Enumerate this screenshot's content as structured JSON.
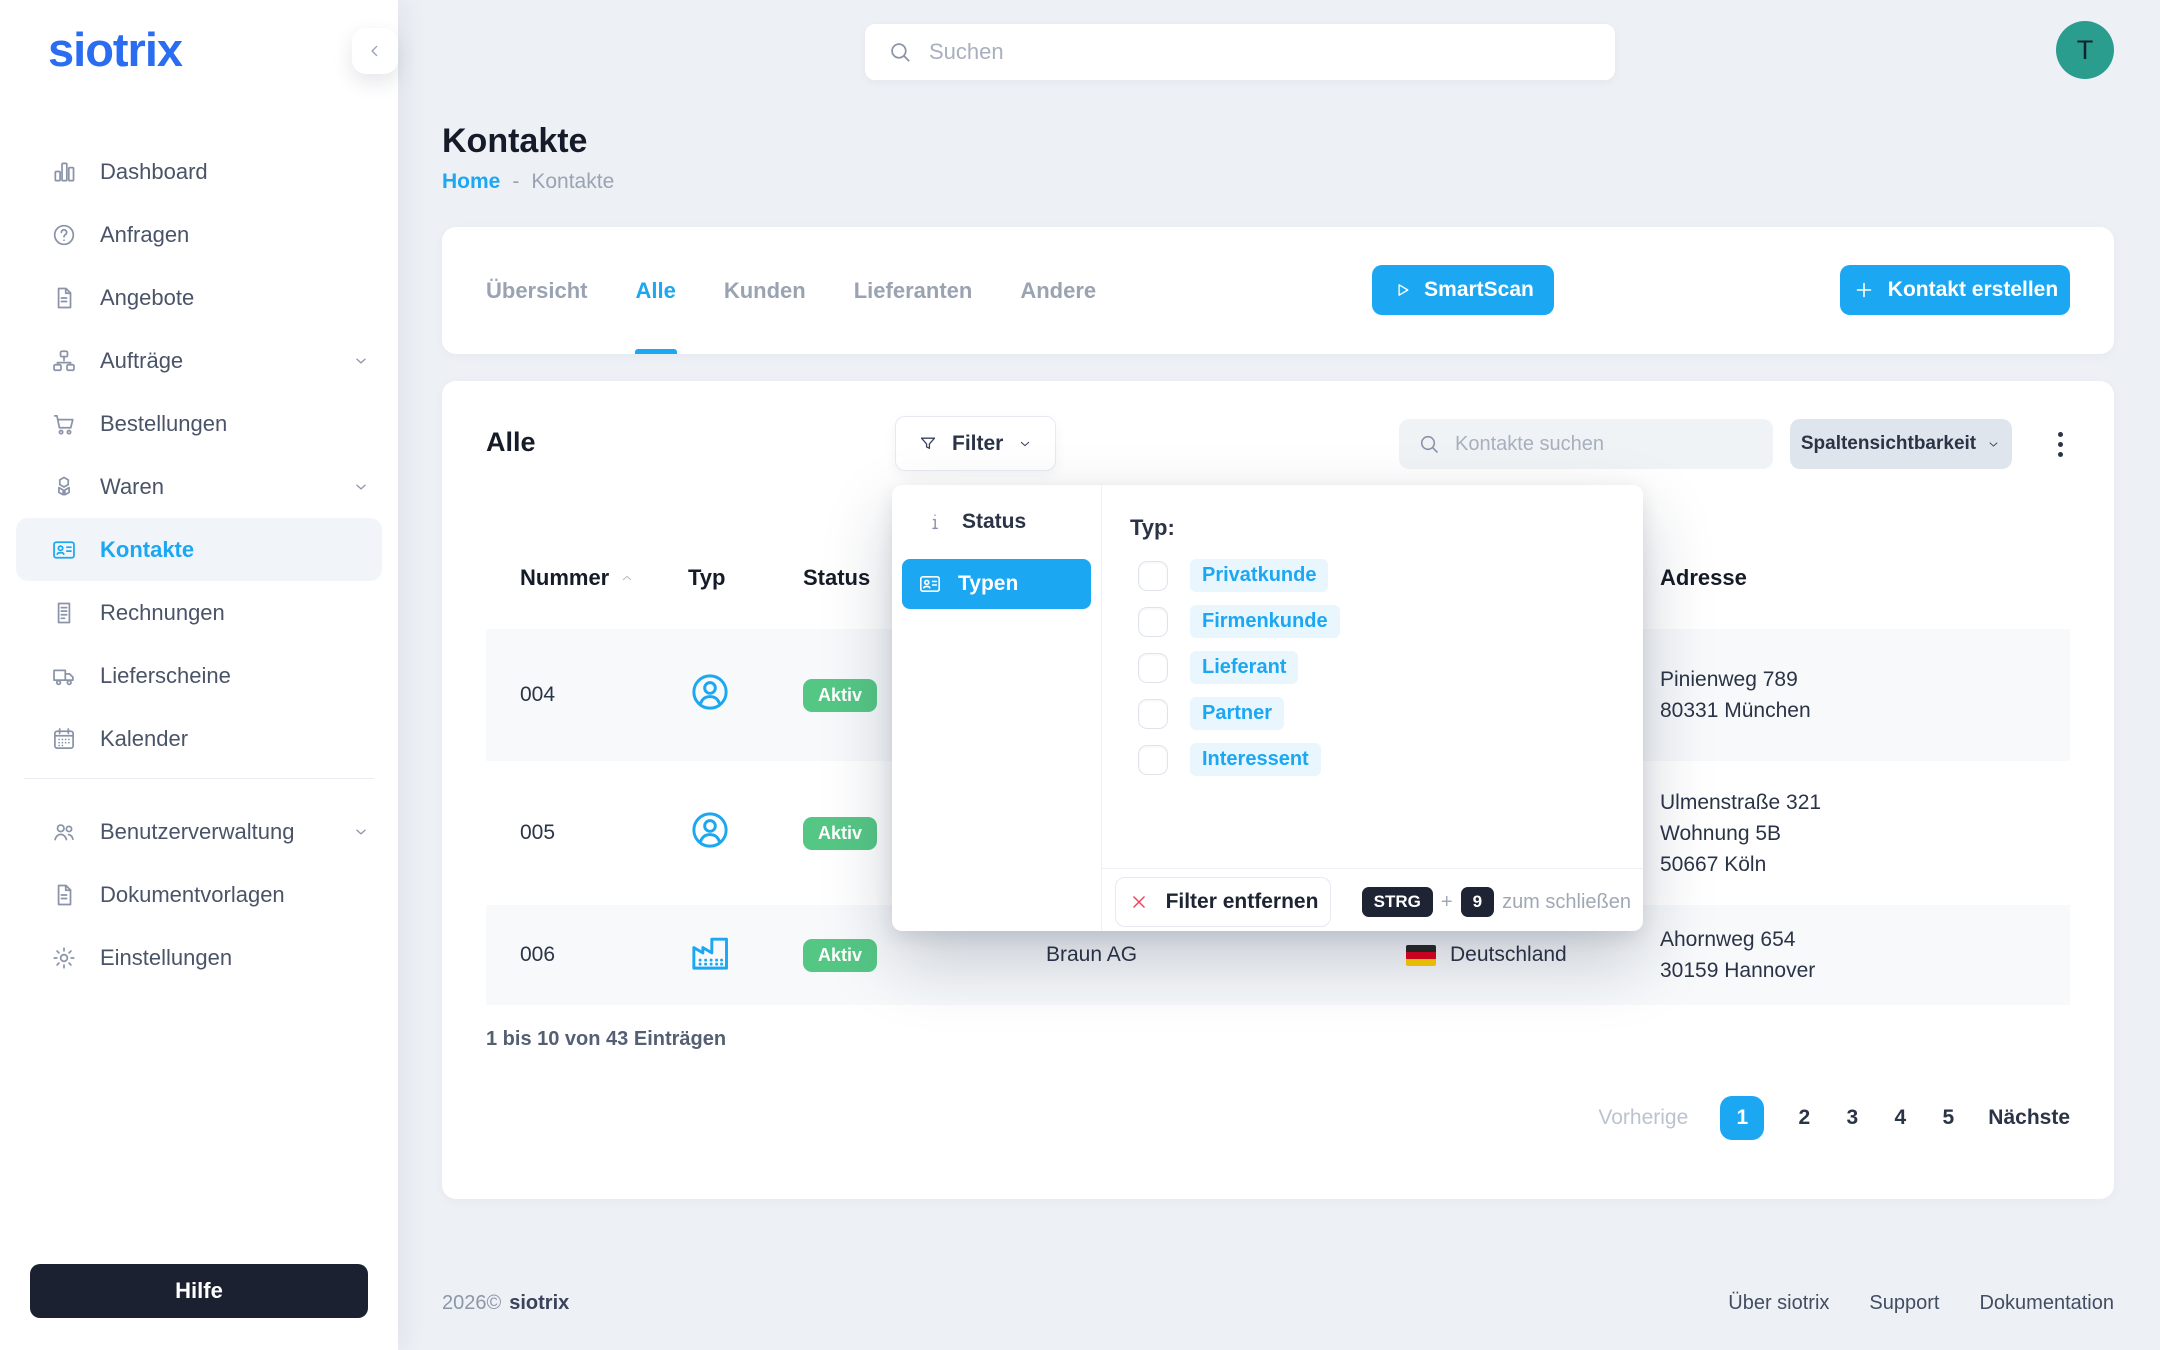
{
  "brand": {
    "logo": "siotrix",
    "avatar_initial": "T"
  },
  "colors": {
    "accent_blue": "#1ba7f2",
    "brand_blue": "#2b6df0",
    "success_green": "#55c785",
    "danger_red": "#ef4056",
    "dark_navy": "#1b2130",
    "avatar_teal": "#2a9d8f"
  },
  "header": {
    "search_placeholder": "Suchen"
  },
  "sidebar": {
    "items": [
      {
        "label": "Dashboard",
        "icon": "bar-chart"
      },
      {
        "label": "Anfragen",
        "icon": "question-circle"
      },
      {
        "label": "Angebote",
        "icon": "document"
      },
      {
        "label": "Aufträge",
        "icon": "orgchart",
        "chevron": true
      },
      {
        "label": "Bestellungen",
        "icon": "cart"
      },
      {
        "label": "Waren",
        "icon": "cubes",
        "chevron": true
      },
      {
        "label": "Kontakte",
        "icon": "contact-card",
        "active": true
      },
      {
        "label": "Rechnungen",
        "icon": "invoice"
      },
      {
        "label": "Lieferscheine",
        "icon": "truck"
      },
      {
        "label": "Kalender",
        "icon": "calendar"
      }
    ],
    "secondary_items": [
      {
        "label": "Benutzerverwaltung",
        "icon": "users",
        "chevron": true
      },
      {
        "label": "Dokumentvorlagen",
        "icon": "document"
      },
      {
        "label": "Einstellungen",
        "icon": "gear"
      }
    ],
    "help_button": "Hilfe"
  },
  "page": {
    "title": "Kontakte",
    "breadcrumb_home": "Home",
    "breadcrumb_sep": "-",
    "breadcrumb_current": "Kontakte"
  },
  "tabs": {
    "items": [
      "Übersicht",
      "Alle",
      "Kunden",
      "Lieferanten",
      "Andere"
    ],
    "active": "Alle",
    "smartscan_label": "SmartScan",
    "create_label": "Kontakt erstellen"
  },
  "table_card": {
    "heading": "Alle",
    "filter_label": "Filter",
    "search_placeholder": "Kontakte suchen",
    "columns_button_label": "Spaltensichtbarkeit",
    "columns": [
      "Nummer",
      "Typ",
      "Status",
      "Adresse"
    ],
    "sort_column": "Nummer",
    "rows": [
      {
        "nummer": "004",
        "typ": "person",
        "status": "Aktiv",
        "adresse": [
          "Pinienweg 789",
          "80331 München"
        ]
      },
      {
        "nummer": "005",
        "typ": "person",
        "status": "Aktiv",
        "adresse": [
          "Ulmenstraße 321",
          "Wohnung 5B",
          "50667 Köln"
        ]
      },
      {
        "nummer": "006",
        "typ": "company",
        "status": "Aktiv",
        "name": "Braun AG",
        "land": "Deutschland",
        "adresse": [
          "Ahornweg 654",
          "30159 Hannover"
        ]
      }
    ],
    "entries_text": "1 bis 10 von 43 Einträgen",
    "pagination": {
      "prev": "Vorherige",
      "pages": [
        "1",
        "2",
        "3",
        "4",
        "5"
      ],
      "active_page": "1",
      "next": "Nächste"
    }
  },
  "filter_dropdown": {
    "menu": [
      {
        "label": "Status",
        "icon": "info"
      },
      {
        "label": "Typen",
        "icon": "contact-card",
        "active": true
      }
    ],
    "panel_title": "Typ:",
    "options": [
      "Privatkunde",
      "Firmenkunde",
      "Lieferant",
      "Partner",
      "Interessent"
    ],
    "remove_label": "Filter entfernen",
    "shortcut": {
      "key1": "STRG",
      "plus": "+",
      "key2": "9",
      "text": "zum schließen"
    }
  },
  "footer": {
    "copyright_year": "2026©",
    "copyright_brand": "siotrix",
    "links": [
      "Über siotrix",
      "Support",
      "Dokumentation"
    ]
  }
}
